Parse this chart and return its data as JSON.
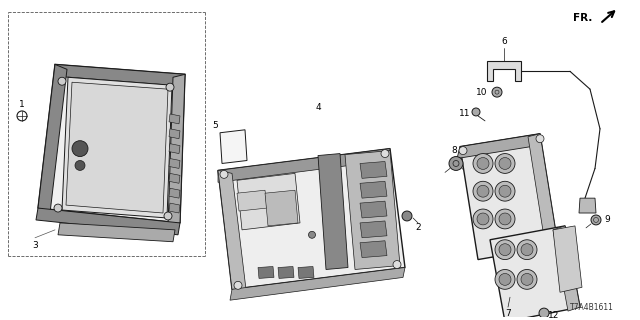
{
  "bg_color": "#ffffff",
  "fig_width": 6.4,
  "fig_height": 3.2,
  "dpi": 100,
  "diagram_code": "T7A4B1611",
  "fr_label": "FR.",
  "gray": "#1a1a1a",
  "lgray": "#555555",
  "label_fontsize": 6.5,
  "diagram_fontsize": 5.5,
  "fr_fontsize": 7.5
}
